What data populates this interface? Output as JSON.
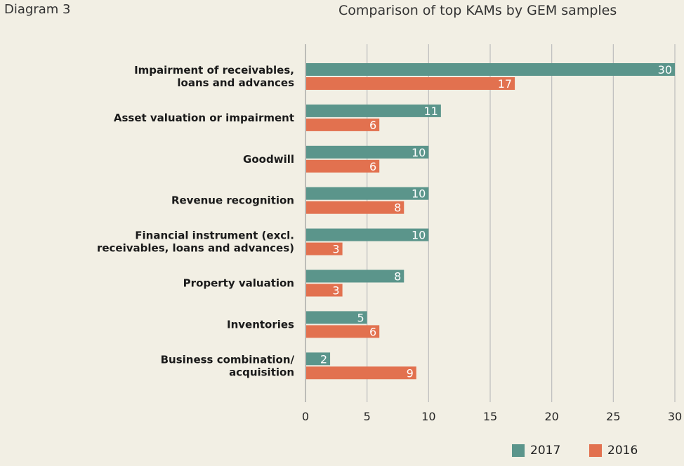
{
  "header": {
    "diagram_label": "Diagram 3",
    "title": "Comparison of top KAMs by GEM samples"
  },
  "colors": {
    "s2017": "#5b958b",
    "s2016": "#e2714f",
    "grid": "#bdbdbd",
    "background": "#f2efe4"
  },
  "chart_data": {
    "type": "bar",
    "orientation": "horizontal",
    "title": "Comparison of top KAMs by GEM samples",
    "categories": [
      [
        "Impairment of receivables,",
        "loans and advances"
      ],
      [
        "Asset valuation or impairment"
      ],
      [
        "Goodwill"
      ],
      [
        "Revenue recognition"
      ],
      [
        "Financial instrument (excl.",
        "receivables, loans and advances)"
      ],
      [
        "Property valuation"
      ],
      [
        "Inventories"
      ],
      [
        "Business combination/",
        "acquisition"
      ]
    ],
    "series": [
      {
        "name": "2017",
        "color": "#5b958b",
        "values": [
          30,
          11,
          10,
          10,
          10,
          8,
          5,
          2
        ]
      },
      {
        "name": "2016",
        "color": "#e2714f",
        "values": [
          17,
          6,
          6,
          8,
          3,
          3,
          6,
          9
        ]
      }
    ],
    "xlim": [
      0,
      30
    ],
    "xticks": [
      0,
      5,
      10,
      15,
      20,
      25,
      30
    ],
    "grid": true,
    "legend_position": "bottom-right"
  },
  "legend": {
    "items": [
      {
        "label": "2017",
        "color": "#5b958b"
      },
      {
        "label": "2016",
        "color": "#e2714f"
      }
    ]
  }
}
